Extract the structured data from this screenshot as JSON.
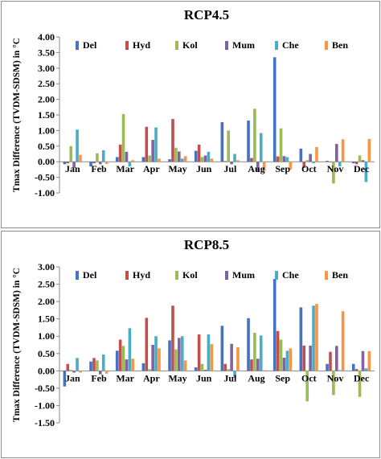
{
  "chart_data": [
    {
      "type": "bar",
      "title": "RCP4.5",
      "ylabel": "Tmax Difference (TVDM-SDSM) in °C",
      "xlabel": "",
      "ylim": [
        -1.0,
        4.0
      ],
      "yticks": [
        "4.00",
        "3.50",
        "3.00",
        "2.50",
        "2.00",
        "1.50",
        "1.00",
        "0.50",
        "0.00",
        "-0.50",
        "-1.00"
      ],
      "categories": [
        "Jan",
        "Feb",
        "Mar",
        "Apr",
        "May",
        "Jun",
        "Jul",
        "Aug",
        "Sep",
        "Oct",
        "Nov",
        "Dec"
      ],
      "legend_position": "top",
      "series": [
        {
          "name": "Del",
          "color": "#4472c4",
          "values": [
            -0.08,
            -0.15,
            0.15,
            0.15,
            0.08,
            0.35,
            1.27,
            1.32,
            3.35,
            0.42,
            0.03,
            -0.05
          ]
        },
        {
          "name": "Hyd",
          "color": "#c0504d",
          "values": [
            -0.05,
            -0.05,
            0.55,
            1.12,
            1.37,
            0.55,
            0.02,
            0.12,
            0.17,
            -0.2,
            0.0,
            -0.08
          ]
        },
        {
          "name": "Kol",
          "color": "#9bbb59",
          "values": [
            0.5,
            0.27,
            1.53,
            0.2,
            0.45,
            0.15,
            1.0,
            1.7,
            1.07,
            0.05,
            -0.7,
            0.2
          ]
        },
        {
          "name": "Mum",
          "color": "#8064a2",
          "values": [
            -0.2,
            -0.08,
            0.32,
            0.7,
            0.33,
            0.2,
            -0.08,
            -0.3,
            0.18,
            0.25,
            0.57,
            0.05
          ]
        },
        {
          "name": "Che",
          "color": "#4bacc6",
          "values": [
            1.03,
            0.37,
            -0.15,
            1.1,
            0.1,
            0.32,
            0.25,
            0.92,
            0.15,
            -0.05,
            -0.15,
            -0.65
          ]
        },
        {
          "name": "Ben",
          "color": "#f79646",
          "values": [
            0.22,
            -0.07,
            0.05,
            0.1,
            0.18,
            0.1,
            0.05,
            -0.3,
            -0.25,
            0.47,
            0.72,
            0.73
          ]
        }
      ]
    },
    {
      "type": "bar",
      "title": "RCP8.5",
      "ylabel": "Tmax Difference (TVDM-SDSM) in °C",
      "xlabel": "",
      "ylim": [
        -1.5,
        3.0
      ],
      "yticks": [
        "3.00",
        "2.50",
        "2.00",
        "1.50",
        "1.00",
        "0.50",
        "0.00",
        "-0.50",
        "-1.00",
        "-1.50"
      ],
      "categories": [
        "Jan",
        "Feb",
        "Mar",
        "Apr",
        "May",
        "Jun",
        "Jul",
        "Aug",
        "Sep",
        "Oct",
        "Nov",
        "Dec"
      ],
      "legend_position": "top",
      "series": [
        {
          "name": "Del",
          "color": "#4472c4",
          "values": [
            -0.45,
            0.27,
            0.58,
            0.22,
            0.88,
            0.1,
            1.3,
            1.52,
            2.65,
            1.83,
            0.2,
            0.2
          ]
        },
        {
          "name": "Hyd",
          "color": "#c0504d",
          "values": [
            0.2,
            0.37,
            0.9,
            1.53,
            1.88,
            1.05,
            0.2,
            0.33,
            1.15,
            0.73,
            0.55,
            0.05
          ]
        },
        {
          "name": "Kol",
          "color": "#9bbb59",
          "values": [
            0.03,
            0.3,
            0.72,
            0.05,
            0.62,
            0.2,
            0.05,
            1.1,
            0.9,
            -0.88,
            -0.7,
            -0.75
          ]
        },
        {
          "name": "Mum",
          "color": "#8064a2",
          "values": [
            -0.05,
            -0.1,
            0.33,
            0.75,
            0.95,
            0.03,
            0.78,
            0.35,
            0.38,
            0.73,
            0.72,
            0.57
          ]
        },
        {
          "name": "Che",
          "color": "#4bacc6",
          "values": [
            0.37,
            0.47,
            1.23,
            1.0,
            1.0,
            1.05,
            -0.2,
            1.02,
            0.58,
            1.88,
            0.02,
            0.07
          ]
        },
        {
          "name": "Ben",
          "color": "#f79646",
          "values": [
            -0.05,
            -0.08,
            0.35,
            0.65,
            0.3,
            0.77,
            0.68,
            0.02,
            0.65,
            1.93,
            1.72,
            0.57
          ]
        }
      ]
    }
  ]
}
